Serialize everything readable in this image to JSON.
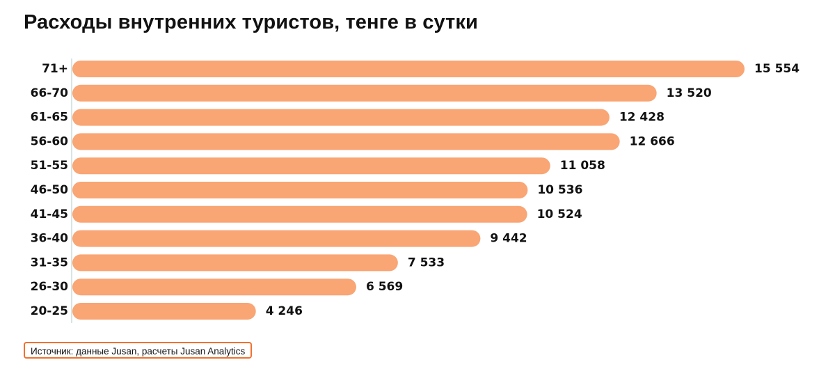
{
  "chart_data": {
    "type": "bar",
    "orientation": "horizontal",
    "title": "Расходы внутренних туристов, тенге в сутки",
    "categories": [
      "71+",
      "66-70",
      "61-65",
      "56-60",
      "51-55",
      "46-50",
      "41-45",
      "36-40",
      "31-35",
      "26-30",
      "20-25"
    ],
    "values": [
      15554,
      13520,
      12428,
      12666,
      11058,
      10536,
      10524,
      9442,
      7533,
      6569,
      4246
    ],
    "value_labels": [
      "15 554",
      "13 520",
      "12 428",
      "12 666",
      "11 058",
      "10 536",
      "10 524",
      "9 442",
      "7 533",
      "6 569",
      "4 246"
    ],
    "xlim": [
      0,
      15554
    ],
    "bar_color": "#f9a574",
    "grid": false,
    "legend": "none"
  },
  "source": {
    "text": "Источник: данные Jusan, расчеты Jusan Analytics",
    "border_color": "#f0712e"
  }
}
